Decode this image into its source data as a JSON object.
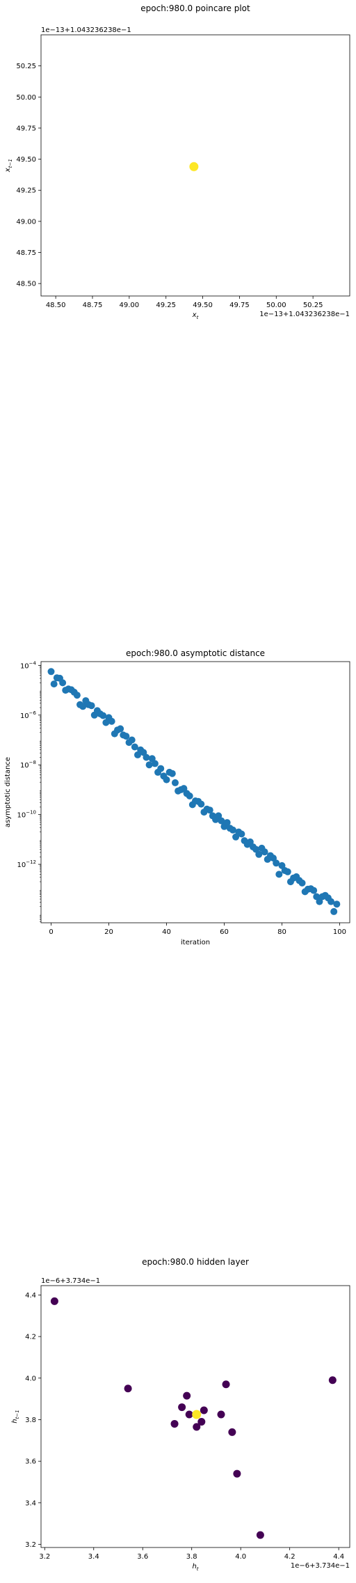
{
  "chart_data": [
    {
      "type": "scatter",
      "title": "epoch:980.0 poincare plot",
      "xlabel": "x_t",
      "ylabel": "x_{t-1}",
      "x_offset_label": "1e−13+1.043236238e−1",
      "y_offset_label": "1e−13+1.043236238e−1",
      "xticks": [
        "48.50",
        "48.75",
        "49.00",
        "49.25",
        "49.50",
        "49.75",
        "50.00",
        "50.25"
      ],
      "yticks": [
        "48.50",
        "48.75",
        "49.00",
        "49.25",
        "49.50",
        "49.75",
        "50.00",
        "50.25"
      ],
      "xlim": [
        48.4,
        50.5
      ],
      "ylim": [
        48.4,
        50.5
      ],
      "points": [
        {
          "x": 49.44,
          "y": 49.44,
          "color": "#fde725"
        }
      ]
    },
    {
      "type": "scatter",
      "title": "epoch:980.0 asymptotic distance",
      "xlabel": "iteration",
      "ylabel": "asymptotic distance",
      "xticks": [
        "0",
        "20",
        "40",
        "60",
        "80",
        "100"
      ],
      "ytick_labels": [
        {
          "base": "10",
          "exp": "−12"
        },
        {
          "base": "10",
          "exp": "−10"
        },
        {
          "base": "10",
          "exp": "−8"
        },
        {
          "base": "10",
          "exp": "−6"
        },
        {
          "base": "10",
          "exp": "−4"
        }
      ],
      "y_scale": "log",
      "xlim": [
        -3.5,
        103.5
      ],
      "ylim_log10": [
        -14.35,
        -3.85
      ],
      "marker_color": "#1f77b4",
      "x": [
        0,
        1,
        2,
        3,
        4,
        5,
        6,
        7,
        8,
        9,
        10,
        11,
        12,
        13,
        14,
        15,
        16,
        17,
        18,
        19,
        20,
        21,
        22,
        23,
        24,
        25,
        26,
        27,
        28,
        29,
        30,
        31,
        32,
        33,
        34,
        35,
        36,
        37,
        38,
        39,
        40,
        41,
        42,
        43,
        44,
        45,
        46,
        47,
        48,
        49,
        50,
        51,
        52,
        53,
        54,
        55,
        56,
        57,
        58,
        59,
        60,
        61,
        62,
        63,
        64,
        65,
        66,
        67,
        68,
        69,
        70,
        71,
        72,
        73,
        74,
        75,
        76,
        77,
        78,
        79,
        80,
        81,
        82,
        83,
        84,
        85,
        86,
        87,
        88,
        89,
        90,
        91,
        92,
        93,
        94,
        95,
        96,
        97,
        98,
        99
      ],
      "y_log10": [
        -4.25,
        -4.75,
        -4.5,
        -4.52,
        -4.7,
        -5.0,
        -4.95,
        -4.98,
        -5.08,
        -5.2,
        -5.58,
        -5.65,
        -5.42,
        -5.58,
        -5.62,
        -6.0,
        -5.82,
        -5.95,
        -6.02,
        -6.3,
        -6.1,
        -6.25,
        -6.75,
        -6.6,
        -6.55,
        -6.8,
        -6.85,
        -7.1,
        -7.0,
        -7.28,
        -7.6,
        -7.4,
        -7.5,
        -7.7,
        -8.0,
        -7.75,
        -7.95,
        -8.3,
        -8.15,
        -8.45,
        -8.6,
        -8.3,
        -8.35,
        -8.72,
        -9.05,
        -9.0,
        -8.95,
        -9.15,
        -9.25,
        -9.6,
        -9.45,
        -9.47,
        -9.58,
        -9.9,
        -9.78,
        -9.82,
        -10.05,
        -10.2,
        -10.05,
        -10.25,
        -10.48,
        -10.32,
        -10.55,
        -10.62,
        -10.9,
        -10.7,
        -10.78,
        -11.05,
        -11.2,
        -11.1,
        -11.3,
        -11.4,
        -11.6,
        -11.35,
        -11.5,
        -11.8,
        -11.65,
        -11.75,
        -11.95,
        -12.4,
        -12.05,
        -12.25,
        -12.3,
        -12.7,
        -12.55,
        -12.5,
        -12.65,
        -12.75,
        -13.1,
        -13.0,
        -12.98,
        -13.05,
        -13.3,
        -13.5,
        -13.3,
        -13.25,
        -13.35,
        -13.5,
        -13.9,
        -13.6
      ]
    },
    {
      "type": "scatter",
      "title": "epoch:980.0 hidden layer",
      "xlabel": "h_t",
      "ylabel": "h_{t-1}",
      "x_offset_label": "1e−6+3.734e−1",
      "y_offset_label": "1e−6+3.734e−1",
      "xticks": [
        "3.2",
        "3.4",
        "3.6",
        "3.8",
        "4.0",
        "4.2",
        "4.4"
      ],
      "yticks": [
        "3.2",
        "3.4",
        "3.6",
        "3.8",
        "4.0",
        "4.2",
        "4.4"
      ],
      "xlim": [
        3.185,
        4.445
      ],
      "ylim": [
        3.185,
        4.445
      ],
      "points": [
        {
          "x": 3.24,
          "y": 4.37,
          "color": "#440154"
        },
        {
          "x": 3.54,
          "y": 3.95,
          "color": "#440154"
        },
        {
          "x": 3.78,
          "y": 3.915,
          "color": "#440154"
        },
        {
          "x": 3.76,
          "y": 3.86,
          "color": "#440154"
        },
        {
          "x": 3.94,
          "y": 3.97,
          "color": "#440154"
        },
        {
          "x": 4.375,
          "y": 3.99,
          "color": "#440154"
        },
        {
          "x": 3.73,
          "y": 3.78,
          "color": "#440154"
        },
        {
          "x": 3.79,
          "y": 3.825,
          "color": "#440154"
        },
        {
          "x": 3.85,
          "y": 3.845,
          "color": "#440154"
        },
        {
          "x": 3.84,
          "y": 3.79,
          "color": "#440154"
        },
        {
          "x": 3.82,
          "y": 3.765,
          "color": "#440154"
        },
        {
          "x": 3.92,
          "y": 3.825,
          "color": "#440154"
        },
        {
          "x": 3.965,
          "y": 3.74,
          "color": "#440154"
        },
        {
          "x": 3.985,
          "y": 3.54,
          "color": "#440154"
        },
        {
          "x": 4.08,
          "y": 3.245,
          "color": "#440154"
        },
        {
          "x": 3.82,
          "y": 3.825,
          "color": "#fde725"
        }
      ]
    }
  ]
}
